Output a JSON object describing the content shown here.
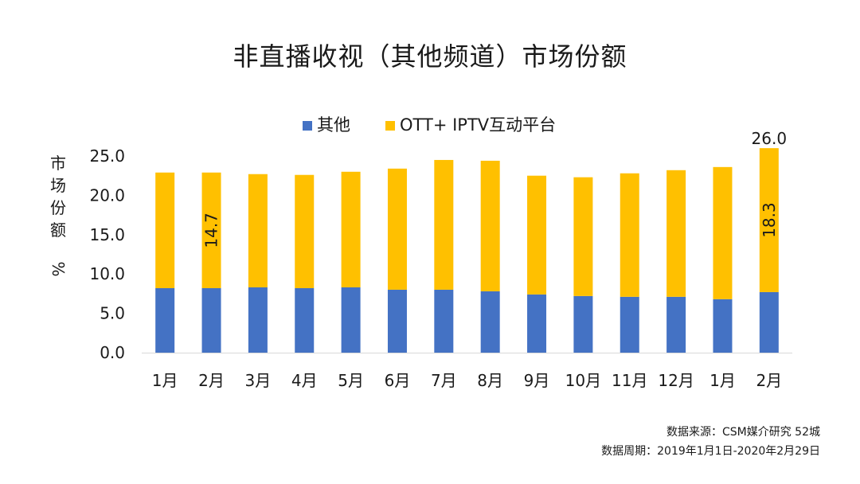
{
  "chart_data": {
    "type": "bar",
    "stacked": true,
    "title": "非直播收视（其他频道）市场份额",
    "ylabel": "市场份额 %",
    "categories": [
      "1月",
      "2月",
      "3月",
      "4月",
      "5月",
      "6月",
      "7月",
      "8月",
      "9月",
      "10月",
      "11月",
      "12月",
      "1月",
      "2月"
    ],
    "series": [
      {
        "name": "其他",
        "color": "#4472C4",
        "values": [
          8.2,
          8.2,
          8.3,
          8.2,
          8.3,
          8.0,
          8.0,
          7.8,
          7.4,
          7.2,
          7.1,
          7.1,
          6.8,
          7.7
        ]
      },
      {
        "name": "OTT+ IPTV互动平台",
        "color": "#FFC000",
        "values": [
          14.7,
          14.7,
          14.4,
          14.4,
          14.7,
          15.4,
          16.5,
          16.6,
          15.1,
          15.1,
          15.7,
          16.1,
          16.8,
          18.3
        ]
      }
    ],
    "ylim": [
      0,
      25
    ],
    "yticks": [
      "0.0",
      "5.0",
      "10.0",
      "15.0",
      "20.0",
      "25.0"
    ],
    "data_labels": [
      {
        "index": 1,
        "series": 1,
        "text": "14.7",
        "rotated": true
      },
      {
        "index": 13,
        "series": 1,
        "text": "18.3",
        "rotated": true
      },
      {
        "index": 13,
        "series": "total",
        "text": "26.0",
        "rotated": false
      }
    ],
    "legend_position": "top-center",
    "grid": false
  },
  "source_line": "数据来源：CSM媒介研究 52城",
  "period_line": "数据周期：2019年1月1日-2020年2月29日"
}
